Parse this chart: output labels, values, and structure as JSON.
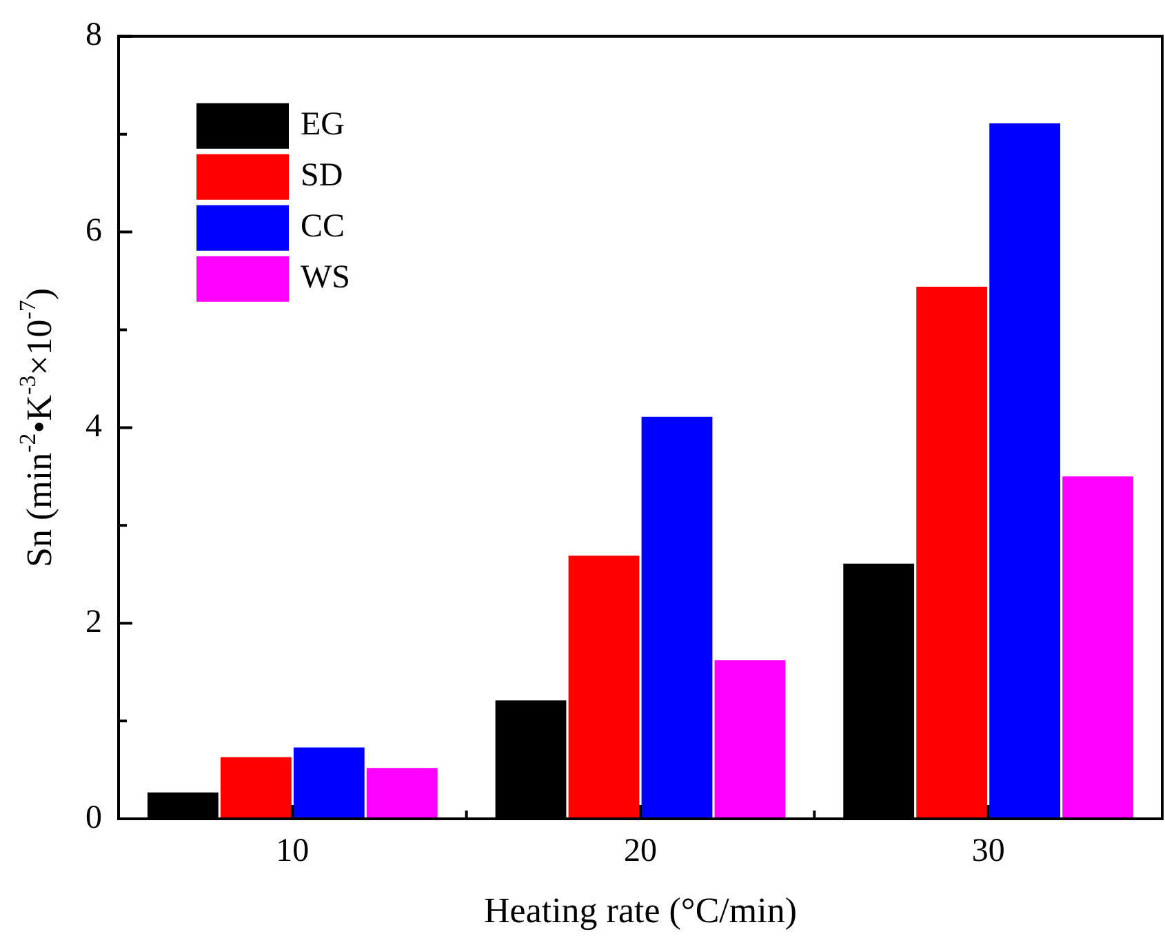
{
  "chart_data": {
    "type": "bar",
    "xlabel": "Heating rate (°C/min)",
    "ylabel": "Sn (min$^{-2}$•K$^{-3}$×10$^{-7}$)",
    "categories": [
      "10",
      "20",
      "30"
    ],
    "series": [
      {
        "name": "EG",
        "color": "#000000",
        "values": [
          0.27,
          1.21,
          2.61
        ]
      },
      {
        "name": "SD",
        "color": "#ff0000",
        "values": [
          0.63,
          2.69,
          5.44
        ]
      },
      {
        "name": "CC",
        "color": "#0000ff",
        "values": [
          0.73,
          4.11,
          7.11
        ]
      },
      {
        "name": "WS",
        "color": "#ff00ff",
        "values": [
          0.52,
          1.62,
          3.5
        ]
      }
    ],
    "ylim": [
      0,
      8
    ],
    "yticks": [
      0,
      {
        "value": 1,
        "label": null
      },
      2,
      {
        "value": 3,
        "label": null
      },
      4,
      {
        "value": 5,
        "label": null
      },
      6,
      {
        "value": 7,
        "label": null
      },
      8
    ],
    "grid": false,
    "legend": "top left"
  }
}
